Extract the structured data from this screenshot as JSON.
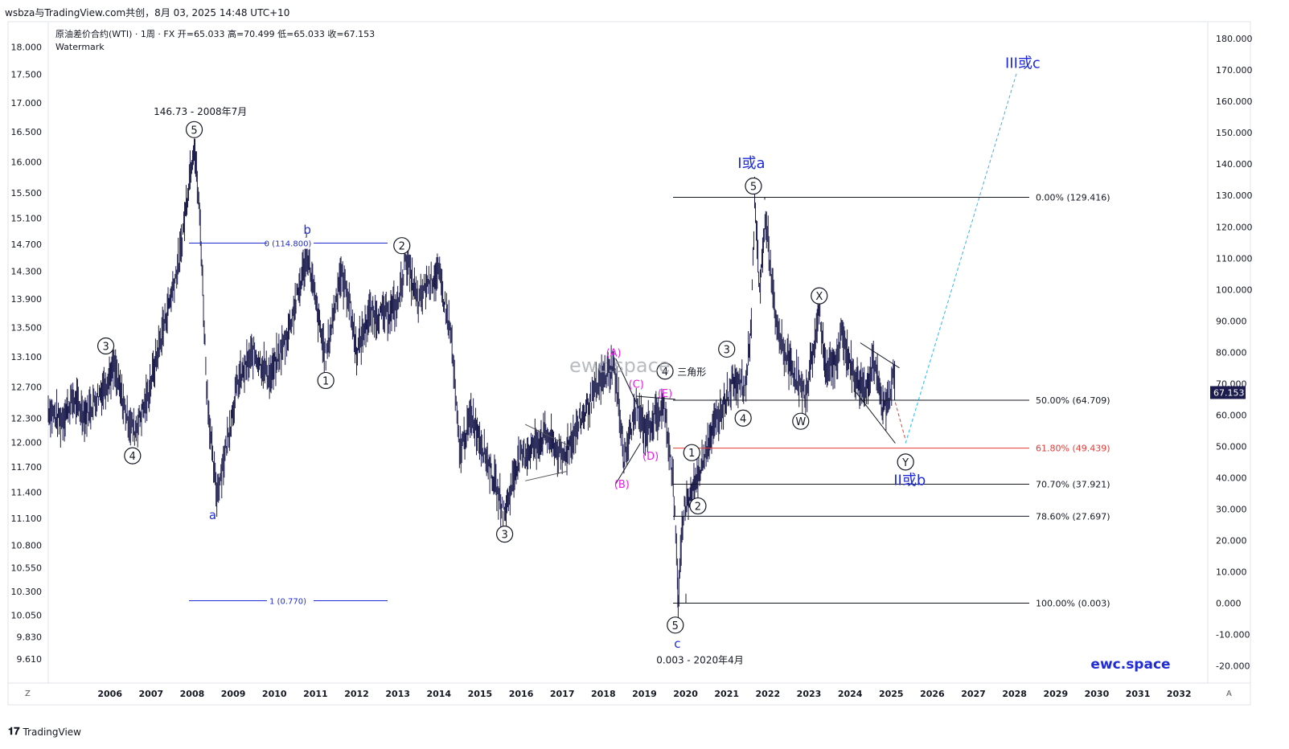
{
  "header": {
    "publish_line": "wsbza与TradingView.com共创，8月 03, 2025 14:48 UTC+10",
    "symbol_line": "原油差价合约(WTI) · 1周 · FX  开=65.033  高=70.499  低=65.033  收=67.153",
    "watermark_label": "Watermark"
  },
  "footer": {
    "brand": "TradingView",
    "z_label": "Z",
    "a_label": "A"
  },
  "brand_watermark": "ewc.space",
  "colors": {
    "price": "#1b1b4d",
    "blue": "#1e2bd6",
    "magenta": "#e61ee6",
    "cyan": "#29b6f6",
    "red": "#e53935",
    "black": "#131722"
  },
  "chart_data": {
    "type": "candlestick",
    "y_scale": "log",
    "ylim": [
      9.61,
      18.2
    ],
    "xlim": [
      2005.0,
      2033.2
    ],
    "left_axis_ticks": [
      "18.000",
      "17.500",
      "17.000",
      "16.500",
      "16.000",
      "15.500",
      "15.100",
      "14.700",
      "14.300",
      "13.900",
      "13.500",
      "13.100",
      "12.700",
      "12.300",
      "12.000",
      "11.700",
      "11.400",
      "11.100",
      "10.800",
      "10.550",
      "10.300",
      "10.050",
      "9.830",
      "9.610"
    ],
    "right_axis_ticks": [
      "180.000",
      "170.000",
      "160.000",
      "150.000",
      "140.000",
      "130.000",
      "120.000",
      "110.000",
      "100.000",
      "90.000",
      "80.000",
      "70.000",
      "60.000",
      "50.000",
      "40.000",
      "30.000",
      "20.000",
      "10.000",
      "0.000",
      "-10.000",
      "-20.000"
    ],
    "right_axis_values": [
      180,
      170,
      160,
      150,
      140,
      130,
      120,
      110,
      100,
      90,
      80,
      70,
      60,
      50,
      40,
      30,
      20,
      10,
      0,
      -10,
      -20
    ],
    "x_ticks": [
      "2006",
      "2007",
      "2008",
      "2009",
      "2010",
      "2011",
      "2012",
      "2013",
      "2014",
      "2015",
      "2016",
      "2017",
      "2018",
      "2019",
      "2020",
      "2021",
      "2022",
      "2023",
      "2024",
      "2025",
      "2026",
      "2027",
      "2028",
      "2029",
      "2030",
      "2031",
      "2032"
    ],
    "last_price": "67.153",
    "price_path": [
      [
        2005.0,
        62
      ],
      [
        2005.3,
        58
      ],
      [
        2005.6,
        65
      ],
      [
        2005.9,
        60
      ],
      [
        2006.3,
        68
      ],
      [
        2006.6,
        75
      ],
      [
        2006.9,
        60
      ],
      [
        2007.1,
        55
      ],
      [
        2007.4,
        65
      ],
      [
        2007.8,
        88
      ],
      [
        2008.2,
        110
      ],
      [
        2008.45,
        138
      ],
      [
        2008.55,
        147
      ],
      [
        2008.7,
        120
      ],
      [
        2008.85,
        70
      ],
      [
        2009.0,
        45
      ],
      [
        2009.1,
        35
      ],
      [
        2009.3,
        48
      ],
      [
        2009.6,
        70
      ],
      [
        2010.0,
        80
      ],
      [
        2010.4,
        72
      ],
      [
        2010.8,
        85
      ],
      [
        2011.1,
        100
      ],
      [
        2011.3,
        112
      ],
      [
        2011.6,
        88
      ],
      [
        2011.75,
        78
      ],
      [
        2012.1,
        105
      ],
      [
        2012.3,
        98
      ],
      [
        2012.5,
        80
      ],
      [
        2012.8,
        92
      ],
      [
        2013.2,
        92
      ],
      [
        2013.5,
        95
      ],
      [
        2013.7,
        110
      ],
      [
        2014.0,
        95
      ],
      [
        2014.2,
        102
      ],
      [
        2014.5,
        105
      ],
      [
        2014.8,
        85
      ],
      [
        2015.0,
        48
      ],
      [
        2015.3,
        60
      ],
      [
        2015.7,
        45
      ],
      [
        2016.1,
        28
      ],
      [
        2016.4,
        45
      ],
      [
        2016.8,
        50
      ],
      [
        2017.1,
        54
      ],
      [
        2017.5,
        46
      ],
      [
        2017.9,
        57
      ],
      [
        2018.4,
        70
      ],
      [
        2018.75,
        76
      ],
      [
        2018.95,
        55
      ],
      [
        2019.0,
        45
      ],
      [
        2019.3,
        63
      ],
      [
        2019.5,
        55
      ],
      [
        2019.8,
        60
      ],
      [
        2020.0,
        62
      ],
      [
        2020.2,
        38
      ],
      [
        2020.3,
        10
      ],
      [
        2020.32,
        0.5
      ],
      [
        2020.45,
        30
      ],
      [
        2020.8,
        40
      ],
      [
        2021.0,
        50
      ],
      [
        2021.4,
        63
      ],
      [
        2021.7,
        72
      ],
      [
        2021.95,
        68
      ],
      [
        2022.1,
        90
      ],
      [
        2022.18,
        128
      ],
      [
        2022.3,
        100
      ],
      [
        2022.45,
        123
      ],
      [
        2022.7,
        88
      ],
      [
        2022.9,
        80
      ],
      [
        2023.2,
        72
      ],
      [
        2023.4,
        65
      ],
      [
        2023.7,
        88
      ],
      [
        2023.75,
        95
      ],
      [
        2023.9,
        75
      ],
      [
        2024.2,
        78
      ],
      [
        2024.3,
        86
      ],
      [
        2024.6,
        72
      ],
      [
        2024.9,
        68
      ],
      [
        2025.05,
        78
      ],
      [
        2025.3,
        62
      ],
      [
        2025.45,
        65
      ],
      [
        2025.55,
        76
      ],
      [
        2025.6,
        67
      ]
    ],
    "fib_levels": [
      {
        "label": "0.00% (129.416)",
        "value": 129.416,
        "color": "#131722"
      },
      {
        "label": "50.00% (64.709)",
        "value": 64.709,
        "color": "#131722"
      },
      {
        "label": "61.80% (49.439)",
        "value": 49.439,
        "color": "#e53935"
      },
      {
        "label": "70.70% (37.921)",
        "value": 37.921,
        "color": "#131722"
      },
      {
        "label": "78.60% (27.697)",
        "value": 27.697,
        "color": "#131722"
      },
      {
        "label": "100.00% (0.003)",
        "value": 0.003,
        "color": "#131722"
      }
    ],
    "blue_fib": [
      {
        "label": "0 (114.800)",
        "value": 114.8
      },
      {
        "label": "1 (0.770)",
        "value": 0.77
      }
    ],
    "wave_labels": [
      {
        "text": "5",
        "t": 2008.55,
        "v": 151,
        "circled": true,
        "color": "#131722"
      },
      {
        "text": "3",
        "t": 2006.4,
        "v": 82,
        "circled": true,
        "color": "#131722"
      },
      {
        "text": "4",
        "t": 2007.05,
        "v": 47,
        "circled": true,
        "color": "#131722"
      },
      {
        "text": "a",
        "t": 2009.0,
        "v": 28,
        "circled": false,
        "color": "#1e2bd6"
      },
      {
        "text": "b",
        "t": 2011.3,
        "v": 119,
        "circled": false,
        "color": "#1e2bd6"
      },
      {
        "text": "1",
        "t": 2011.75,
        "v": 71,
        "circled": true,
        "color": "#131722"
      },
      {
        "text": "2",
        "t": 2013.6,
        "v": 114,
        "circled": true,
        "color": "#131722"
      },
      {
        "text": "3",
        "t": 2016.1,
        "v": 22,
        "circled": true,
        "color": "#131722"
      },
      {
        "text": "(A)",
        "t": 2018.75,
        "v": 80,
        "circled": false,
        "color": "#e61ee6"
      },
      {
        "text": "(B)",
        "t": 2018.95,
        "v": 38,
        "circled": false,
        "color": "#e61ee6"
      },
      {
        "text": "(C)",
        "t": 2019.3,
        "v": 70,
        "circled": false,
        "color": "#e61ee6"
      },
      {
        "text": "(D)",
        "t": 2019.65,
        "v": 47,
        "circled": false,
        "color": "#e61ee6"
      },
      {
        "text": "(E)",
        "t": 2020.0,
        "v": 67,
        "circled": false,
        "color": "#e61ee6"
      },
      {
        "text": "4",
        "t": 2020.0,
        "v": 74,
        "circled": true,
        "color": "#131722"
      },
      {
        "text": "5",
        "t": 2020.25,
        "v": -7,
        "circled": true,
        "color": "#131722"
      },
      {
        "text": "c",
        "t": 2020.3,
        "v": -13,
        "circled": false,
        "color": "#1e2bd6"
      },
      {
        "text": "1",
        "t": 2020.65,
        "v": 48,
        "circled": true,
        "color": "#131722"
      },
      {
        "text": "2",
        "t": 2020.8,
        "v": 31,
        "circled": true,
        "color": "#131722"
      },
      {
        "text": "3",
        "t": 2021.5,
        "v": 81,
        "circled": true,
        "color": "#131722"
      },
      {
        "text": "4",
        "t": 2021.9,
        "v": 59,
        "circled": true,
        "color": "#131722"
      },
      {
        "text": "5",
        "t": 2022.15,
        "v": 133,
        "circled": true,
        "color": "#131722"
      },
      {
        "text": "W",
        "t": 2023.3,
        "v": 58,
        "circled": true,
        "color": "#131722"
      },
      {
        "text": "X",
        "t": 2023.75,
        "v": 98,
        "circled": true,
        "color": "#131722"
      },
      {
        "text": "Y",
        "t": 2025.85,
        "v": 45,
        "circled": true,
        "color": "#131722"
      }
    ],
    "annotations": [
      {
        "text": "146.73 - 2008年7月",
        "t": 2008.7,
        "v": 157,
        "color": "#131722"
      },
      {
        "text": "0.003 - 2020年4月",
        "t": 2020.85,
        "v": -18,
        "color": "#131722"
      },
      {
        "text": "三角形",
        "t": 2020.65,
        "v": 74,
        "color": "#131722"
      },
      {
        "text": "I或a",
        "t": 2022.1,
        "v": 140,
        "color": "#1e2bd6"
      },
      {
        "text": "II或b",
        "t": 2025.95,
        "v": 39,
        "color": "#1e2bd6"
      },
      {
        "text": "III或c",
        "t": 2028.7,
        "v": 172,
        "color": "#1e2bd6"
      },
      {
        "text": "ewc.space",
        "t": 2018.9,
        "v": 75,
        "color": "#9aa0a6"
      }
    ]
  }
}
